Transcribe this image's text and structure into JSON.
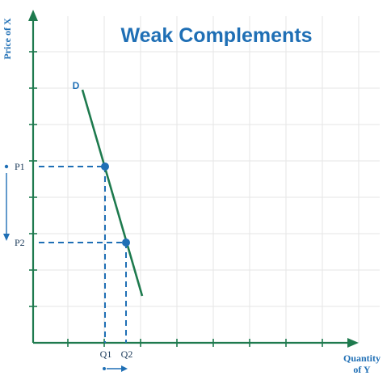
{
  "title": "Weak Complements",
  "y_axis_label": "Price of X",
  "x_axis_label_line1": "Quantity",
  "x_axis_label_line2": "of Y",
  "curve_label": "D",
  "price_labels": [
    "P1",
    "P2"
  ],
  "quantity_labels": [
    "Q1",
    "Q2"
  ],
  "colors": {
    "axis": "#1e7a4e",
    "curve": "#1e7a4e",
    "guide": "#1f6fb5",
    "point": "#1f6fb5",
    "title": "#1f6fb5",
    "grid": "#e6e6e6",
    "arrow": "#1f6fb5"
  },
  "icons": {
    "down_arrow": "arrow-down-icon",
    "right_arrow": "arrow-right-icon"
  }
}
